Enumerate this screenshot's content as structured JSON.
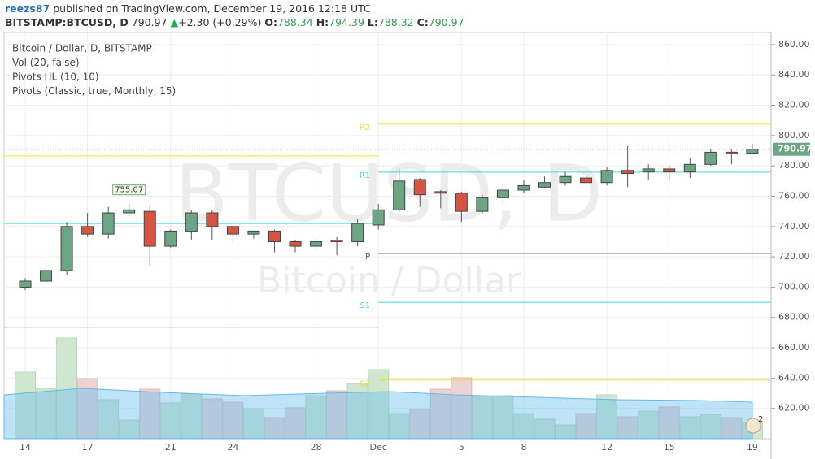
{
  "header": {
    "user": "reezs87",
    "published": "published on TradingView.com, December 19, 2016 12:18 UTC",
    "symbol": "BITSTAMP:BTCUSD, D",
    "arrow": "▲",
    "change": "+2.30 (+0.29%)",
    "o_label": "O:",
    "h_label": "H:",
    "l_label": "L:",
    "c_label": "C:"
  },
  "chart_data": {
    "type": "candlestick",
    "legend": [
      "Bitcoin / Dollar, D, BITSTAMP",
      "Vol (20, false)",
      "Pivots HL (10, 10)",
      "Pivots (Classic, true, Monthly, 15)"
    ],
    "watermark": {
      "symbol": "BTCUSD, D",
      "name": "Bitcoin / Dollar"
    },
    "categories": [
      "14",
      null,
      null,
      "17",
      null,
      null,
      null,
      "21",
      null,
      null,
      "24",
      null,
      null,
      null,
      "28",
      null,
      null,
      "Dec",
      null,
      null,
      null,
      "5",
      null,
      null,
      "8",
      null,
      null,
      null,
      "12",
      null,
      null,
      "15",
      null,
      null,
      null,
      "19"
    ],
    "open": [
      700,
      704,
      711,
      740,
      735,
      749,
      750,
      727,
      737,
      749,
      740,
      735,
      737,
      730,
      727,
      731,
      730,
      741,
      751,
      771,
      763,
      762,
      750,
      759,
      764,
      766,
      769,
      772,
      769,
      777,
      776,
      778,
      776,
      781,
      789,
      788.34
    ],
    "high": [
      706,
      716,
      743,
      749,
      753,
      755.07,
      754,
      738,
      751,
      751,
      741,
      737,
      738,
      731,
      732,
      733,
      745,
      755,
      778,
      772,
      764,
      763,
      761,
      768,
      771,
      773,
      776,
      774,
      779,
      793,
      781,
      780,
      785,
      791,
      791,
      794.39
    ],
    "low": [
      698,
      702,
      708,
      733,
      732,
      747,
      714,
      726,
      731,
      731,
      730,
      732,
      723,
      723,
      725,
      721,
      727,
      738,
      749,
      753,
      752,
      743,
      748,
      753,
      762,
      765,
      767,
      765,
      767,
      766,
      771,
      771,
      772,
      780,
      781,
      788.32
    ],
    "close": [
      704,
      711,
      740,
      735,
      749,
      751,
      727,
      737,
      749,
      740,
      735,
      737,
      730,
      727,
      730,
      730,
      742,
      751,
      770,
      761,
      762,
      750,
      759,
      764,
      767,
      769,
      773,
      769,
      777,
      775,
      778,
      776,
      781,
      789,
      788,
      790.97
    ],
    "volume": [
      82,
      62,
      124,
      74,
      48,
      23,
      61,
      44,
      55,
      49,
      45,
      37,
      26,
      38,
      53,
      59,
      68,
      85,
      31,
      36,
      61,
      75,
      52,
      53,
      31,
      24,
      17,
      31,
      54,
      27,
      34,
      39,
      27,
      30,
      26,
      20
    ],
    "up_color": "#6ba583",
    "down_color": "#d75442",
    "up_volume_color": "#cfe6cf",
    "down_volume_color": "#ecd3d3",
    "ylim": [
      600,
      868
    ],
    "yticks": [
      {
        "value": 620,
        "label": "620.00"
      },
      {
        "value": 640,
        "label": "640.00"
      },
      {
        "value": 660,
        "label": "660.00"
      },
      {
        "value": 680,
        "label": "680.00"
      },
      {
        "value": 700,
        "label": "700.00"
      },
      {
        "value": 720,
        "label": "720.00"
      },
      {
        "value": 740,
        "label": "740.00"
      },
      {
        "value": 760,
        "label": "760.00"
      },
      {
        "value": 780,
        "label": "780.00"
      },
      {
        "value": 800,
        "label": "800.00"
      },
      {
        "value": 820,
        "label": "820.00"
      },
      {
        "value": 840,
        "label": "840.00"
      },
      {
        "value": 860,
        "label": "860.00"
      }
    ],
    "grid": true,
    "pivots": [
      {
        "levels": [
          {
            "value": 786.6,
            "color": "#f2e02a"
          },
          {
            "value": 742,
            "color": "#3fd6dc"
          },
          {
            "value": 673.6,
            "color": "#444444"
          }
        ]
      },
      {
        "levels": [
          {
            "label": "R2",
            "value": 807.5,
            "color": "#f2e02a"
          },
          {
            "label": "R1",
            "value": 775.9,
            "color": "#3fd6dc"
          },
          {
            "label": "P",
            "value": 722.3,
            "color": "#444444"
          },
          {
            "label": "S1",
            "value": 690,
            "color": "#3fd6dc"
          },
          {
            "label": "S2",
            "value": 638.7,
            "color": "#f2e02a"
          }
        ]
      }
    ],
    "badge": "2"
  }
}
